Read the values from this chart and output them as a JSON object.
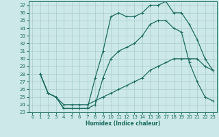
{
  "xlabel": "Humidex (Indice chaleur)",
  "background_color": "#cce8e8",
  "grid_color": "#aacccc",
  "line_color": "#1a6b60",
  "xlim": [
    -0.5,
    23.5
  ],
  "ylim": [
    23,
    37.5
  ],
  "xticks": [
    0,
    1,
    2,
    3,
    4,
    5,
    6,
    7,
    8,
    9,
    10,
    11,
    12,
    13,
    14,
    15,
    16,
    17,
    18,
    19,
    20,
    21,
    22,
    23
  ],
  "yticks": [
    23,
    24,
    25,
    26,
    27,
    28,
    29,
    30,
    31,
    32,
    33,
    34,
    35,
    36,
    37
  ],
  "curve1_x": [
    1,
    2,
    3,
    4,
    5,
    6,
    7,
    8,
    9,
    10,
    11,
    12,
    13,
    14,
    15,
    16,
    17,
    18,
    19,
    20,
    21,
    22,
    23
  ],
  "curve1_y": [
    28,
    25.5,
    25,
    23.5,
    23.5,
    23.5,
    23.5,
    27.5,
    31,
    35.5,
    36,
    35.5,
    35.5,
    36,
    37,
    37,
    37.5,
    36,
    36,
    34.5,
    32.5,
    30,
    28.5
  ],
  "curve2_x": [
    1,
    2,
    3,
    4,
    5,
    6,
    7,
    8,
    9,
    10,
    11,
    12,
    13,
    14,
    15,
    16,
    17,
    18,
    19,
    20,
    21,
    22,
    23
  ],
  "curve2_y": [
    28,
    25.5,
    25,
    23.5,
    23.5,
    23.5,
    23.5,
    24,
    27.5,
    30,
    31,
    31.5,
    32,
    33,
    34.5,
    35,
    35,
    34,
    33.5,
    29.5,
    27,
    25,
    24.5
  ],
  "curve3_x": [
    1,
    2,
    3,
    4,
    5,
    6,
    7,
    8,
    9,
    10,
    11,
    12,
    13,
    14,
    15,
    16,
    17,
    18,
    19,
    20,
    21,
    22,
    23
  ],
  "curve3_y": [
    28,
    25.5,
    25,
    24,
    24,
    24,
    24,
    24.5,
    25,
    25.5,
    26,
    26.5,
    27,
    27.5,
    28.5,
    29,
    29.5,
    30,
    30,
    30,
    30,
    29,
    28.5
  ]
}
